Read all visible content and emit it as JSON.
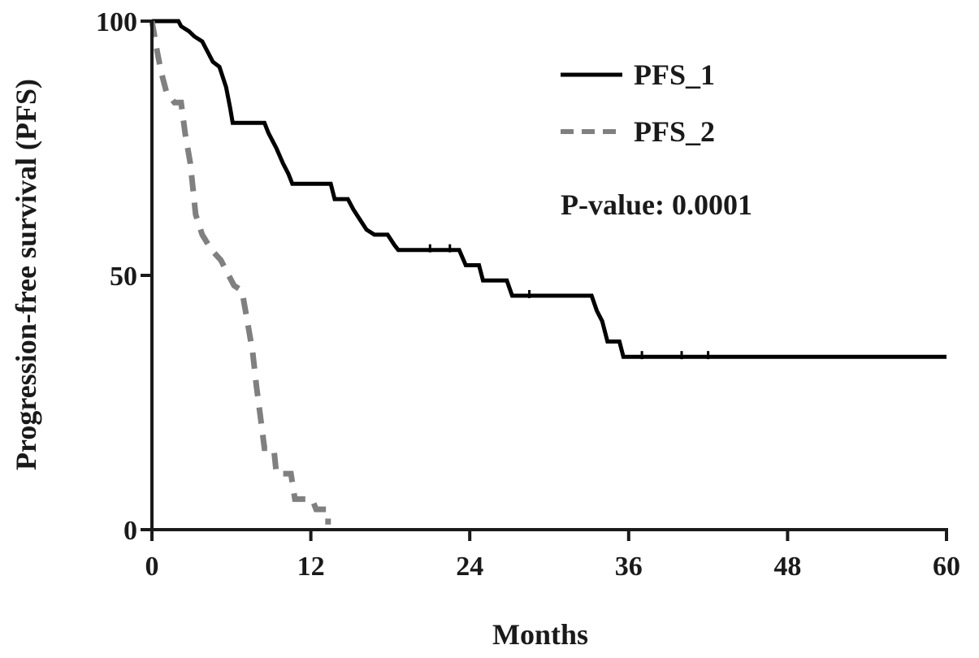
{
  "chart_data": {
    "type": "line",
    "subtype": "kaplan-meier step curve",
    "title": "",
    "xlabel": "Months",
    "ylabel": "Progression-free survival (PFS)",
    "xlim": [
      0,
      60
    ],
    "ylim": [
      0,
      100
    ],
    "xticks": [
      0,
      12,
      24,
      36,
      48,
      60
    ],
    "yticks": [
      0,
      50,
      100
    ],
    "xtick_labels": [
      "0",
      "12",
      "24",
      "36",
      "48",
      "60"
    ],
    "ytick_labels": [
      "0",
      "50",
      "100"
    ],
    "grid": false,
    "legend_position": "top-right",
    "annotation": "P-value: 0.0001",
    "series": [
      {
        "name": "PFS_1",
        "color": "#000000",
        "line_style": "solid",
        "points": [
          [
            0,
            100
          ],
          [
            2,
            100
          ],
          [
            2.2,
            99
          ],
          [
            2.8,
            98
          ],
          [
            3.2,
            97
          ],
          [
            3.8,
            96
          ],
          [
            4.2,
            94
          ],
          [
            4.6,
            92
          ],
          [
            5.1,
            91
          ],
          [
            5.6,
            87
          ],
          [
            5.9,
            83
          ],
          [
            6.1,
            80
          ],
          [
            8.5,
            80
          ],
          [
            8.8,
            78
          ],
          [
            9.4,
            75
          ],
          [
            9.9,
            72
          ],
          [
            10.3,
            70
          ],
          [
            10.6,
            68
          ],
          [
            13.5,
            68
          ],
          [
            13.8,
            65
          ],
          [
            14.8,
            65
          ],
          [
            15.2,
            63
          ],
          [
            15.7,
            61
          ],
          [
            16.2,
            59
          ],
          [
            16.8,
            58
          ],
          [
            17.8,
            58
          ],
          [
            18.3,
            56
          ],
          [
            18.6,
            55
          ],
          [
            23.2,
            55
          ],
          [
            23.7,
            52
          ],
          [
            24.7,
            52
          ],
          [
            25,
            49
          ],
          [
            26.8,
            49
          ],
          [
            27.2,
            46
          ],
          [
            33.2,
            46
          ],
          [
            33.6,
            43
          ],
          [
            34,
            41
          ],
          [
            34.4,
            37
          ],
          [
            35.3,
            37
          ],
          [
            35.6,
            34
          ],
          [
            60,
            34
          ]
        ],
        "censor_ticks": [
          [
            21,
            55
          ],
          [
            22.5,
            55
          ],
          [
            28.5,
            46
          ],
          [
            37,
            34
          ],
          [
            40,
            34
          ],
          [
            42,
            34
          ]
        ]
      },
      {
        "name": "PFS_2",
        "color": "#808080",
        "line_style": "dashed",
        "points": [
          [
            0,
            100
          ],
          [
            0.2,
            97
          ],
          [
            0.4,
            94
          ],
          [
            0.7,
            90
          ],
          [
            1.1,
            86
          ],
          [
            1.7,
            84
          ],
          [
            2.2,
            84
          ],
          [
            2.5,
            78
          ],
          [
            2.9,
            72
          ],
          [
            3.3,
            62
          ],
          [
            3.8,
            58
          ],
          [
            4.5,
            55
          ],
          [
            5.2,
            53
          ],
          [
            5.8,
            50
          ],
          [
            6.2,
            48
          ],
          [
            6.8,
            47
          ],
          [
            7.2,
            41
          ],
          [
            7.6,
            35
          ],
          [
            7.9,
            28
          ],
          [
            8.2,
            22
          ],
          [
            8.5,
            16
          ],
          [
            9.2,
            16
          ],
          [
            9.4,
            11
          ],
          [
            10.5,
            11
          ],
          [
            10.8,
            6
          ],
          [
            12.1,
            6
          ],
          [
            12.4,
            4
          ],
          [
            13.3,
            4
          ],
          [
            13.3,
            1
          ]
        ],
        "censor_ticks": []
      }
    ]
  }
}
